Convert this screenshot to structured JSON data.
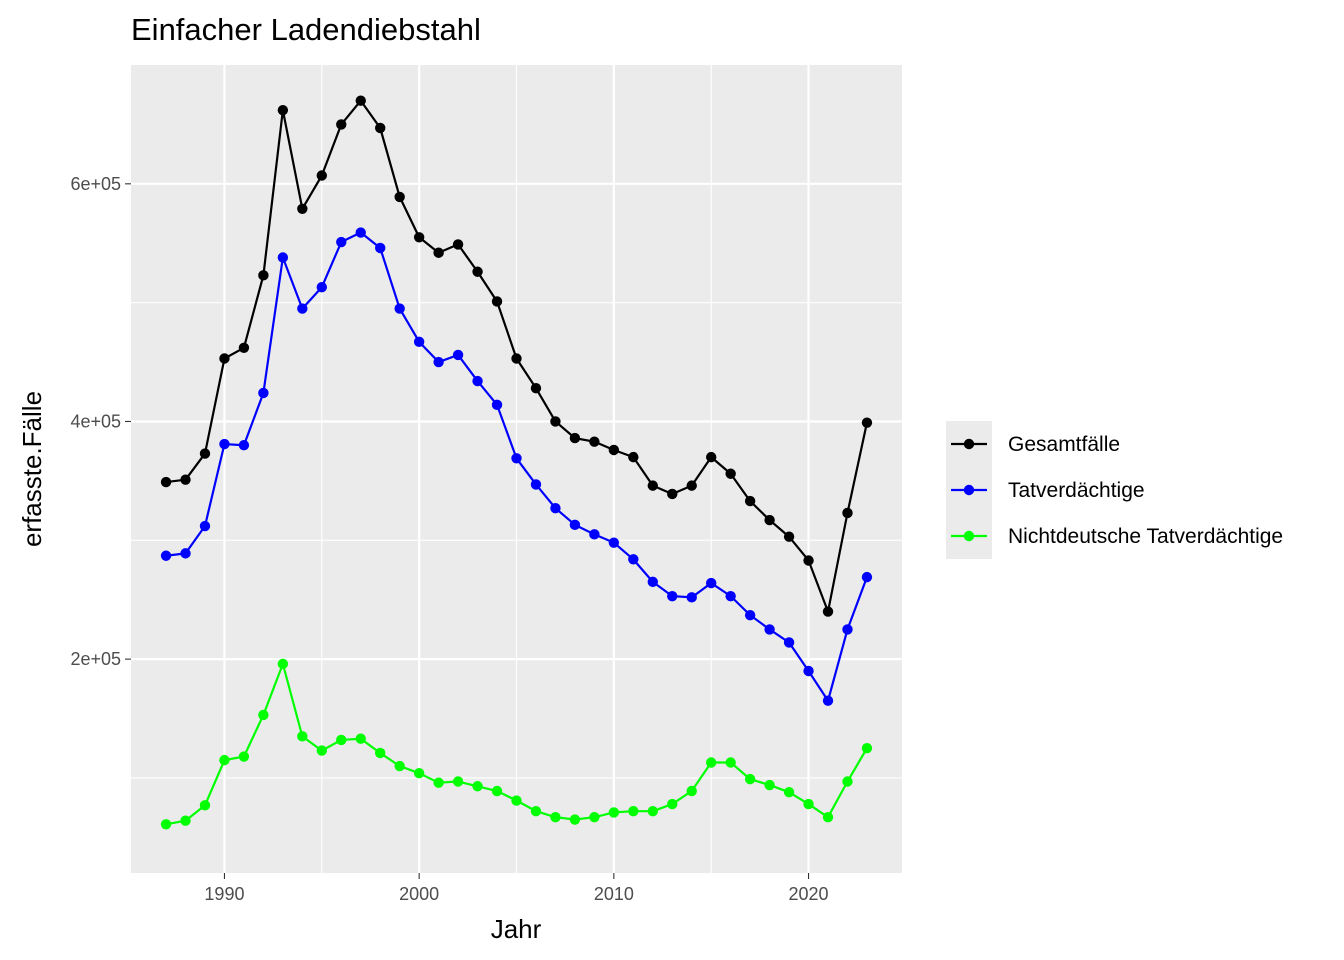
{
  "chart_data": {
    "type": "line",
    "title": "Einfacher Ladendiebstahl",
    "xlabel": "Jahr",
    "ylabel": "erfasste.Fälle",
    "x": [
      1987,
      1988,
      1989,
      1990,
      1991,
      1992,
      1993,
      1994,
      1995,
      1996,
      1997,
      1998,
      1999,
      2000,
      2001,
      2002,
      2003,
      2004,
      2005,
      2006,
      2007,
      2008,
      2009,
      2010,
      2011,
      2012,
      2013,
      2014,
      2015,
      2016,
      2017,
      2018,
      2019,
      2020,
      2021,
      2022,
      2023
    ],
    "xlim": [
      1985.2,
      2024.8
    ],
    "ylim": [
      20000,
      700000
    ],
    "x_ticks": [
      1990,
      2000,
      2010,
      2020
    ],
    "x_tick_labels": [
      "1990",
      "2000",
      "2010",
      "2020"
    ],
    "y_ticks": [
      200000,
      400000,
      600000
    ],
    "y_tick_labels": [
      "2e+05",
      "4e+05",
      "6e+05"
    ],
    "y_minor_ticks": [
      100000,
      300000,
      500000
    ],
    "x_minor_ticks": [
      1995,
      2005,
      2015
    ],
    "grid": true,
    "legend_position": "right",
    "series": [
      {
        "name": "Gesamtfälle",
        "color": "#000000",
        "values": [
          349000,
          351000,
          373000,
          453000,
          462000,
          523000,
          662000,
          579000,
          607000,
          650000,
          670000,
          647000,
          589000,
          555000,
          542000,
          549000,
          526000,
          501000,
          453000,
          428000,
          400000,
          386000,
          383000,
          376000,
          370000,
          346000,
          339000,
          346000,
          370000,
          356000,
          333000,
          317000,
          303000,
          283000,
          240000,
          323000,
          399000
        ]
      },
      {
        "name": "Tatverdächtige",
        "color": "#0000ff",
        "values": [
          287000,
          289000,
          312000,
          381000,
          380000,
          424000,
          538000,
          495000,
          513000,
          551000,
          559000,
          546000,
          495000,
          467000,
          450000,
          456000,
          434000,
          414000,
          369000,
          347000,
          327000,
          313000,
          305000,
          298000,
          284000,
          265000,
          253000,
          252000,
          264000,
          253000,
          237000,
          225000,
          214000,
          190000,
          165000,
          225000,
          269000
        ]
      },
      {
        "name": "Nichtdeutsche Tatverdächtige",
        "color": "#00ff00",
        "values": [
          61000,
          64000,
          77000,
          115000,
          118000,
          153000,
          196000,
          135000,
          123000,
          132000,
          133000,
          121000,
          110000,
          104000,
          96000,
          97000,
          93000,
          89000,
          81000,
          72000,
          67000,
          65000,
          67000,
          71000,
          72000,
          72000,
          78000,
          89000,
          113000,
          113000,
          99000,
          94000,
          88000,
          78000,
          67000,
          97000,
          125000
        ]
      }
    ]
  }
}
